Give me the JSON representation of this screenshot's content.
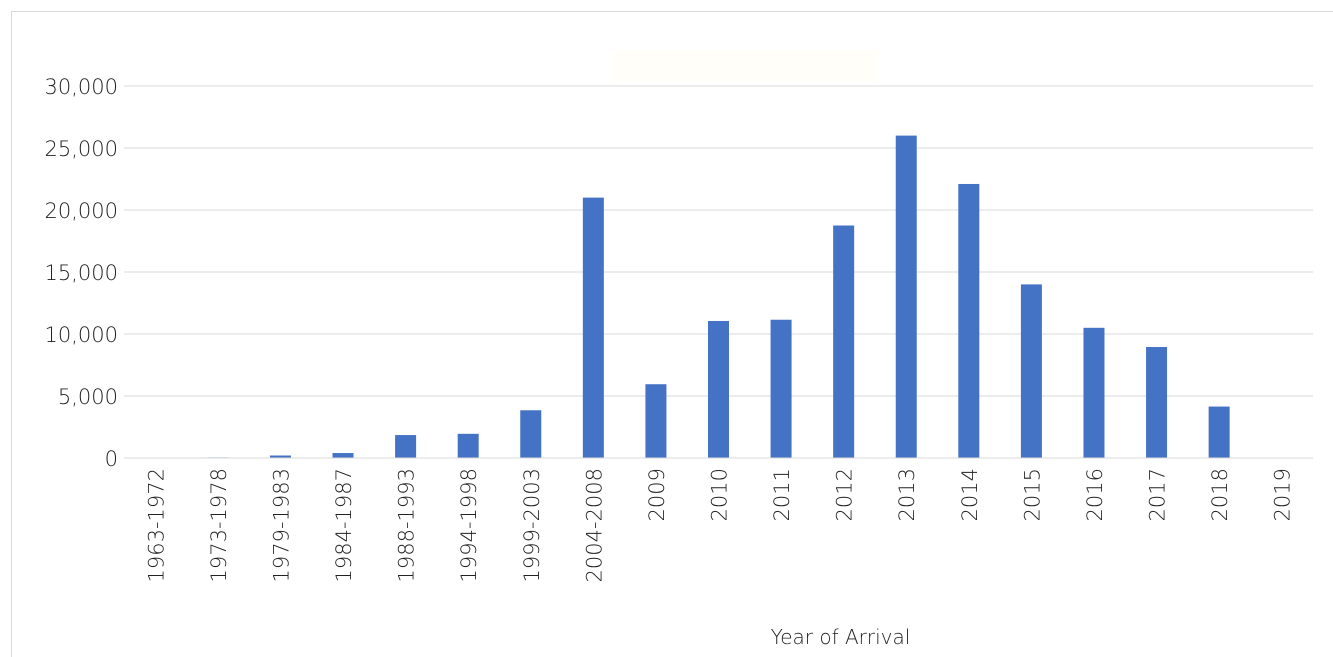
{
  "chart_data": {
    "type": "bar",
    "title": "",
    "xlabel": "Year of Arrival",
    "ylabel": "",
    "ylim": [
      0,
      30000
    ],
    "yticks": [
      "0",
      "5,000",
      "10,000",
      "15,000",
      "20,000",
      "25,000",
      "30,000"
    ],
    "grid": true,
    "legend": "none",
    "bar_color": "#4472c4",
    "grid_color": "#d9d9d9",
    "categories": [
      "1963-1972",
      "1973-1978",
      "1979-1983",
      "1984-1987",
      "1988-1993",
      "1994-1998",
      "1999-2003",
      "2004-2008",
      "2009",
      "2010",
      "2011",
      "2012",
      "2013",
      "2014",
      "2015",
      "2016",
      "2017",
      "2018",
      "2019"
    ],
    "values": [
      30,
      50,
      200,
      400,
      1850,
      1950,
      3850,
      21000,
      5950,
      11050,
      11150,
      18750,
      26000,
      22100,
      14000,
      10500,
      8950,
      4150,
      20
    ]
  }
}
